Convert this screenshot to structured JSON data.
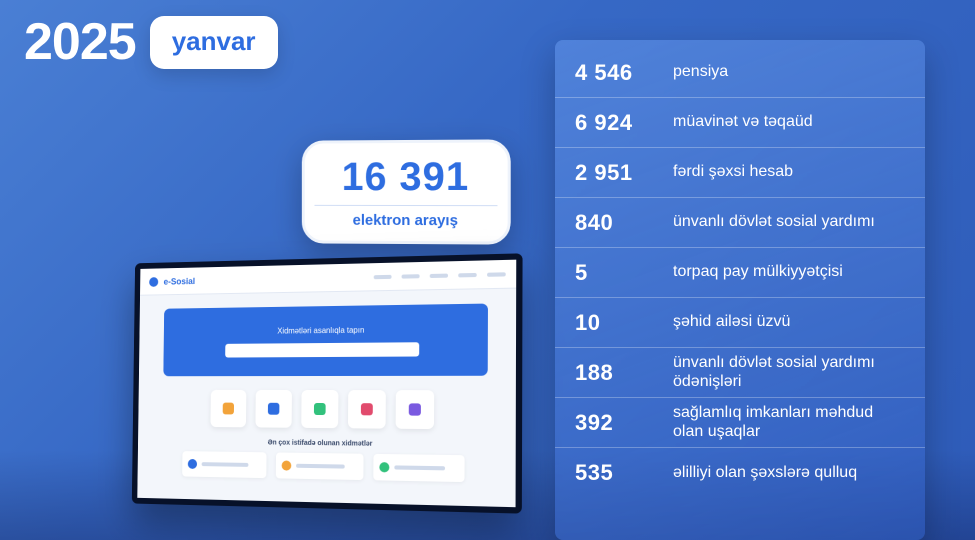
{
  "header": {
    "year": "2025",
    "month": "yanvar"
  },
  "total": {
    "value": "16 391",
    "label": "elektron arayış"
  },
  "stats": [
    {
      "value": "4 546",
      "label": "pensiya"
    },
    {
      "value": "6 924",
      "label": "müavinət və təqaüd"
    },
    {
      "value": "2 951",
      "label": "fərdi şəxsi hesab"
    },
    {
      "value": "840",
      "label": "ünvanlı dövlət sosial yardımı"
    },
    {
      "value": "5",
      "label": "torpaq pay mülkiyyətçisi"
    },
    {
      "value": "10",
      "label": "şəhid ailəsi üzvü"
    },
    {
      "value": "188",
      "label": "ünvanlı dövlət sosial yardımı ödənişləri"
    },
    {
      "value": "392",
      "label": "sağlamlıq imkanları məhdud olan uşaqlar"
    },
    {
      "value": "535",
      "label": "əlilliyi olan şəxslərə qulluq"
    }
  ],
  "monitor": {
    "brand": "e-Sosial",
    "hero_title": "Xidmətləri asanlıqla tapın",
    "section_title": "Ən çox istifadə olunan xidmətlər",
    "tile_colors": [
      "#f2a33a",
      "#2e6de0",
      "#32c17c",
      "#e14b6d",
      "#7a5ae0"
    ],
    "row_icon_colors": [
      "#2e6de0",
      "#f2a33a",
      "#32c17c"
    ]
  },
  "style": {
    "bg_gradient_from": "#4a7fd4",
    "bg_gradient_to": "#2e5bb8",
    "accent": "#2e6de0",
    "white": "#ffffff",
    "panel_divider": "rgba(255,255,255,0.28)",
    "year_fontsize": 52,
    "month_fontsize": 26,
    "total_num_fontsize": 40,
    "stat_value_fontsize": 22,
    "stat_label_fontsize": 16
  }
}
